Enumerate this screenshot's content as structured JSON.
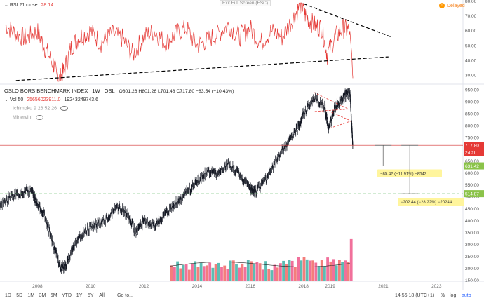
{
  "rsi_pane": {
    "title": "RSI 21 close",
    "value": "28.14",
    "y_ticks": [
      "80.00",
      "70.00",
      "60.00",
      "50.00",
      "40.00",
      "30.00"
    ]
  },
  "main_pane": {
    "symbol": "OSLO BORS BENCHMARK INDEX",
    "interval": "1W",
    "exchange": "OSL",
    "ohlc": "O801.26  H801.26  L701.48  C717.80  −83.54 (−10.43%)",
    "vol_label": "Vol 50",
    "vol_value1": "25656023911.0",
    "vol_value2": "19243249743.6",
    "ichimoku_label": "Ichimoku 9 26 52 26",
    "minervini_label": "Minervini",
    "y_ticks": [
      "950.00",
      "900.00",
      "850.00",
      "800.00",
      "750.00",
      "700.00",
      "650.00",
      "600.00",
      "550.00",
      "500.00",
      "450.00",
      "400.00",
      "350.00",
      "300.00",
      "250.00",
      "200.00",
      "150.00"
    ],
    "price_label_current": "717.80",
    "price_label_countdown": "2d 2h",
    "price_label_level1": "631.42",
    "price_label_level2": "514.87",
    "measure1": "−85.42 (−11.91%) −8542",
    "measure2": "−202.44 (−28.22%) −20244"
  },
  "x_axis": {
    "labels": [
      "2008",
      "2010",
      "2012",
      "2014",
      "2016",
      "2018",
      "2019",
      "2021",
      "2023"
    ]
  },
  "toolbar": {
    "timeframes": [
      "1D",
      "5D",
      "1M",
      "3M",
      "6M",
      "YTD",
      "1Y",
      "5Y",
      "All"
    ],
    "goto_label": "Go to...",
    "time": "14:56:18 (UTC+1)",
    "percent": "%",
    "log": "log",
    "auto": "auto",
    "exit_fullscreen": "Exit Full Screen (ESC)",
    "delayed": "Delayed"
  },
  "colors": {
    "rsi_line": "#e53935",
    "price_line": "#131722",
    "vol_up": "#26a69a",
    "vol_down": "#ef5350",
    "level_line": "#4caf50",
    "current_line": "#d32f2f",
    "price_badge": "#e53935",
    "level_badge": "#8bc34a",
    "measure_bg": "#fff59d"
  },
  "chart_data": [
    {
      "type": "line",
      "series": [
        {
          "x": [
            2006.8,
            2007.2,
            2007.6,
            2008.0,
            2008.3,
            2008.6,
            2008.8,
            2009.0,
            2009.3,
            2009.6,
            2010.0,
            2010.4,
            2010.8,
            2011.2,
            2011.6,
            2012.0,
            2012.4,
            2012.8,
            2013.2,
            2013.6,
            2014.0,
            2014.4,
            2014.8,
            2015.2,
            2015.6,
            2016.0,
            2016.4,
            2016.8,
            2017.2,
            2017.6,
            2017.9,
            2018.1,
            2018.4,
            2018.7,
            2018.9,
            2019.2,
            2019.5,
            2019.75,
            2019.82,
            2019.86
          ],
          "values": [
            64,
            58,
            55,
            60,
            48,
            38,
            26,
            33,
            50,
            56,
            60,
            52,
            58,
            55,
            44,
            56,
            60,
            52,
            58,
            62,
            50,
            54,
            58,
            64,
            56,
            62,
            52,
            60,
            56,
            68,
            78,
            70,
            64,
            62,
            44,
            56,
            62,
            60,
            44,
            28.14
          ]
        }
      ],
      "ylim": [
        25,
        80
      ]
    },
    {
      "type": "line",
      "series": [
        {
          "x": [
            2006.6,
            2007.0,
            2007.4,
            2007.8,
            2008.0,
            2008.3,
            2008.6,
            2008.9,
            2009.1,
            2009.4,
            2009.8,
            2010.2,
            2010.6,
            2011.0,
            2011.4,
            2011.7,
            2012.0,
            2012.4,
            2012.8,
            2013.2,
            2013.6,
            2014.0,
            2014.4,
            2014.8,
            2015.2,
            2015.6,
            2016.0,
            2016.2,
            2016.6,
            2017.0,
            2017.4,
            2017.8,
            2018.0,
            2018.4,
            2018.8,
            2018.95,
            2019.2,
            2019.5,
            2019.75,
            2019.82,
            2019.86
          ],
          "values": [
            470,
            500,
            520,
            530,
            470,
            420,
            300,
            200,
            220,
            300,
            360,
            380,
            410,
            460,
            430,
            350,
            400,
            380,
            430,
            470,
            520,
            560,
            610,
            600,
            640,
            600,
            540,
            520,
            580,
            660,
            730,
            790,
            850,
            920,
            880,
            790,
            880,
            920,
            940,
            800,
            717.8
          ]
        }
      ],
      "ylim": [
        150,
        960
      ]
    },
    {
      "type": "bar",
      "x_range": [
        2013.0,
        2019.86
      ],
      "values": [
        9.4,
        8.7,
        11.9,
        7.6,
        9.6,
        10.1,
        6.7,
        10.2,
        12.0,
        8.4,
        11.0,
        9.0,
        9.4,
        11.1,
        7.9,
        10.4,
        10.9,
        8.5,
        9.3,
        7.4,
        12.4,
        12.5,
        10.3,
        8.0,
        10.5,
        8.6,
        12.6,
        12.0,
        10.4,
        11.5,
        10.8,
        6.8,
        12.1,
        7.1,
        6.5,
        9.8,
        8.1,
        10.8,
        12.2,
        10.2,
        13.0,
        12.2,
        8.3,
        14.5,
        12.5,
        14.8,
        13.1,
        12.4,
        12.5,
        11.1,
        9.1,
        12.8,
        8.9,
        14.3,
        11.8,
        13.3,
        9.4,
        12.9,
        11.5,
        12.5,
        11.4,
        25.7
      ]
    }
  ]
}
